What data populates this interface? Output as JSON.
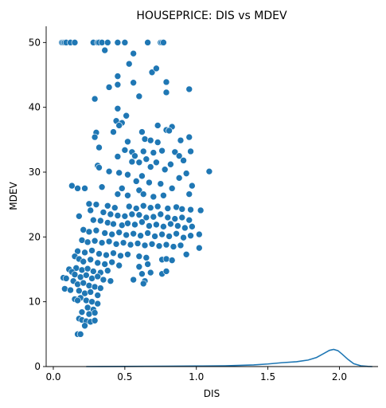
{
  "chart_data": {
    "type": "scatter",
    "title": "HOUSEPRICE: DIS vs MDEV",
    "xlabel": "DIS",
    "ylabel": "MDEV",
    "xlim": [
      -0.05,
      2.27
    ],
    "ylim": [
      0,
      52.5
    ],
    "x_ticks": [
      0.0,
      0.5,
      1.0,
      1.5,
      2.0
    ],
    "x_tick_labels": [
      "0.0",
      "0.5",
      "1.0",
      "1.5",
      "2.0"
    ],
    "y_ticks": [
      0,
      10,
      20,
      30,
      40,
      50
    ],
    "y_tick_labels": [
      "0",
      "10",
      "20",
      "30",
      "40",
      "50"
    ],
    "grid": false,
    "legend": "none",
    "marker_color": "#1f77b4",
    "series": [
      {
        "kind": "scatter",
        "points": [
          [
            0.06,
            50
          ],
          [
            0.07,
            50
          ],
          [
            0.08,
            50
          ],
          [
            0.09,
            50
          ],
          [
            0.12,
            50
          ],
          [
            0.15,
            50
          ],
          [
            0.28,
            50
          ],
          [
            0.31,
            50
          ],
          [
            0.32,
            50
          ],
          [
            0.34,
            50
          ],
          [
            0.38,
            50
          ],
          [
            0.45,
            50
          ],
          [
            0.5,
            50
          ],
          [
            0.66,
            50
          ],
          [
            0.75,
            50
          ],
          [
            0.76,
            50
          ],
          [
            0.77,
            50
          ],
          [
            0.36,
            48.8
          ],
          [
            0.56,
            48.3
          ],
          [
            0.53,
            46.7
          ],
          [
            0.69,
            45.4
          ],
          [
            0.72,
            46
          ],
          [
            0.45,
            44.8
          ],
          [
            0.45,
            43.5
          ],
          [
            0.56,
            43.8
          ],
          [
            0.39,
            43.1
          ],
          [
            0.79,
            43.9
          ],
          [
            0.95,
            42.8
          ],
          [
            0.79,
            42.3
          ],
          [
            0.6,
            41.7
          ],
          [
            0.29,
            41.3
          ],
          [
            0.45,
            39.8
          ],
          [
            0.51,
            38.7
          ],
          [
            0.44,
            37.9
          ],
          [
            0.48,
            37.6
          ],
          [
            0.46,
            37.2
          ],
          [
            0.73,
            37.2
          ],
          [
            0.83,
            37
          ],
          [
            0.42,
            36.2
          ],
          [
            0.62,
            36.2
          ],
          [
            0.79,
            36.5
          ],
          [
            0.81,
            36.4
          ],
          [
            0.3,
            36.1
          ],
          [
            0.29,
            35.4
          ],
          [
            0.64,
            35.1
          ],
          [
            0.68,
            34.9
          ],
          [
            0.73,
            34.6
          ],
          [
            0.89,
            34.9
          ],
          [
            0.95,
            35.4
          ],
          [
            0.52,
            34.7
          ],
          [
            0.32,
            33.8
          ],
          [
            0.5,
            33.4
          ],
          [
            0.55,
            33.1
          ],
          [
            0.63,
            33.2
          ],
          [
            0.7,
            33
          ],
          [
            0.76,
            33.3
          ],
          [
            0.85,
            33.1
          ],
          [
            0.96,
            33.2
          ],
          [
            0.57,
            32.5
          ],
          [
            0.45,
            32.4
          ],
          [
            0.88,
            32.5
          ],
          [
            0.65,
            32
          ],
          [
            0.55,
            31.6
          ],
          [
            0.6,
            31.5
          ],
          [
            0.72,
            31.5
          ],
          [
            0.82,
            31.2
          ],
          [
            0.91,
            31.8
          ],
          [
            0.31,
            31
          ],
          [
            0.32,
            30.7
          ],
          [
            0.68,
            30.8
          ],
          [
            0.78,
            30.4
          ],
          [
            0.39,
            30.1
          ],
          [
            0.46,
            29.9
          ],
          [
            0.52,
            29.6
          ],
          [
            0.62,
            29.4
          ],
          [
            0.88,
            29.1
          ],
          [
            0.93,
            29.8
          ],
          [
            1.09,
            30.1
          ],
          [
            0.58,
            28.6
          ],
          [
            0.67,
            28.4
          ],
          [
            0.75,
            28.2
          ],
          [
            0.13,
            27.9
          ],
          [
            0.17,
            27.5
          ],
          [
            0.22,
            27.5
          ],
          [
            0.34,
            27.7
          ],
          [
            0.48,
            27.5
          ],
          [
            0.6,
            27.2
          ],
          [
            0.83,
            27.5
          ],
          [
            0.97,
            27.9
          ],
          [
            0.45,
            26.6
          ],
          [
            0.52,
            26.4
          ],
          [
            0.63,
            26.6
          ],
          [
            0.7,
            26.2
          ],
          [
            0.77,
            26.4
          ],
          [
            0.95,
            26.6
          ],
          [
            0.25,
            25.1
          ],
          [
            0.3,
            25
          ],
          [
            0.38,
            24.8
          ],
          [
            0.43,
            24.5
          ],
          [
            0.53,
            24.7
          ],
          [
            0.58,
            24.4
          ],
          [
            0.63,
            24.8
          ],
          [
            0.68,
            24.5
          ],
          [
            0.73,
            24.7
          ],
          [
            0.8,
            24.4
          ],
          [
            0.86,
            24.6
          ],
          [
            0.9,
            24.3
          ],
          [
            0.96,
            24.2
          ],
          [
            1.03,
            24.1
          ],
          [
            0.26,
            24.1
          ],
          [
            0.35,
            23.8
          ],
          [
            0.4,
            23.5
          ],
          [
            0.45,
            23.3
          ],
          [
            0.5,
            23.2
          ],
          [
            0.55,
            23.5
          ],
          [
            0.6,
            23.4
          ],
          [
            0.65,
            23
          ],
          [
            0.7,
            23.1
          ],
          [
            0.75,
            23.5
          ],
          [
            0.8,
            23
          ],
          [
            0.85,
            22.8
          ],
          [
            0.9,
            23
          ],
          [
            0.95,
            22.6
          ],
          [
            0.18,
            23.2
          ],
          [
            0.28,
            22.6
          ],
          [
            0.33,
            22.5
          ],
          [
            0.38,
            22.2
          ],
          [
            0.42,
            22
          ],
          [
            0.48,
            21.8
          ],
          [
            0.52,
            22.1
          ],
          [
            0.57,
            21.9
          ],
          [
            0.62,
            22.3
          ],
          [
            0.67,
            21.7
          ],
          [
            0.72,
            21.9
          ],
          [
            0.77,
            21.6
          ],
          [
            0.82,
            22
          ],
          [
            0.87,
            21.7
          ],
          [
            0.92,
            21.4
          ],
          [
            0.97,
            21.6
          ],
          [
            0.21,
            21.1
          ],
          [
            0.25,
            20.8
          ],
          [
            0.3,
            21
          ],
          [
            0.36,
            20.6
          ],
          [
            0.41,
            20.4
          ],
          [
            0.46,
            20.7
          ],
          [
            0.51,
            20.3
          ],
          [
            0.56,
            20.5
          ],
          [
            0.61,
            20.2
          ],
          [
            0.66,
            20.6
          ],
          [
            0.71,
            20.1
          ],
          [
            0.76,
            20.4
          ],
          [
            0.81,
            20.1
          ],
          [
            0.86,
            20.5
          ],
          [
            0.91,
            19.9
          ],
          [
            0.96,
            20.2
          ],
          [
            1.02,
            20.4
          ],
          [
            0.2,
            19.5
          ],
          [
            0.24,
            19.2
          ],
          [
            0.29,
            19.4
          ],
          [
            0.34,
            19.1
          ],
          [
            0.39,
            19.3
          ],
          [
            0.44,
            18.9
          ],
          [
            0.49,
            19.1
          ],
          [
            0.54,
            18.8
          ],
          [
            0.59,
            19
          ],
          [
            0.64,
            18.7
          ],
          [
            0.69,
            18.9
          ],
          [
            0.74,
            18.6
          ],
          [
            0.79,
            18.8
          ],
          [
            0.84,
            18.5
          ],
          [
            0.89,
            18.7
          ],
          [
            1.02,
            18.3
          ],
          [
            0.17,
            17.8
          ],
          [
            0.22,
            17.6
          ],
          [
            0.27,
            17.9
          ],
          [
            0.32,
            17.4
          ],
          [
            0.37,
            17.2
          ],
          [
            0.42,
            17.5
          ],
          [
            0.47,
            17.1
          ],
          [
            0.52,
            17.3
          ],
          [
            0.6,
            17
          ],
          [
            0.65,
            16.8
          ],
          [
            0.76,
            16.5
          ],
          [
            0.79,
            16.6
          ],
          [
            0.83,
            16.4
          ],
          [
            0.93,
            17.3
          ],
          [
            0.15,
            17
          ],
          [
            0.18,
            16.6
          ],
          [
            0.21,
            16.2
          ],
          [
            0.26,
            16.5
          ],
          [
            0.31,
            16
          ],
          [
            0.36,
            15.8
          ],
          [
            0.41,
            16.1
          ],
          [
            0.46,
            15.6
          ],
          [
            0.6,
            15.4
          ],
          [
            0.66,
            15.8
          ],
          [
            0.16,
            15.2
          ],
          [
            0.2,
            14.9
          ],
          [
            0.24,
            15.1
          ],
          [
            0.28,
            14.7
          ],
          [
            0.33,
            14.5
          ],
          [
            0.38,
            14.8
          ],
          [
            0.62,
            14.3
          ],
          [
            0.68,
            14.5
          ],
          [
            0.76,
            14.3
          ],
          [
            0.79,
            14.7
          ],
          [
            0.11,
            15
          ],
          [
            0.13,
            14.6
          ],
          [
            0.15,
            14.2
          ],
          [
            0.19,
            13.8
          ],
          [
            0.23,
            14.1
          ],
          [
            0.27,
            13.6
          ],
          [
            0.31,
            13.9
          ],
          [
            0.35,
            13.4
          ],
          [
            0.4,
            13.2
          ],
          [
            0.64,
            13.2
          ],
          [
            0.07,
            13.7
          ],
          [
            0.09,
            13.6
          ],
          [
            0.14,
            13.2
          ],
          [
            0.17,
            12.7
          ],
          [
            0.21,
            12.9
          ],
          [
            0.25,
            12.5
          ],
          [
            0.29,
            12.3
          ],
          [
            0.33,
            12.1
          ],
          [
            0.56,
            13.4
          ],
          [
            0.63,
            12.8
          ],
          [
            0.08,
            12
          ],
          [
            0.12,
            11.8
          ],
          [
            0.18,
            11.7
          ],
          [
            0.22,
            11.3
          ],
          [
            0.26,
            11.5
          ],
          [
            0.31,
            11
          ],
          [
            0.15,
            10.4
          ],
          [
            0.19,
            10.6
          ],
          [
            0.23,
            10.2
          ],
          [
            0.27,
            10
          ],
          [
            0.31,
            9.7
          ],
          [
            0.17,
            10.2
          ],
          [
            0.24,
            9.1
          ],
          [
            0.28,
            8.8
          ],
          [
            0.2,
            8.4
          ],
          [
            0.25,
            8.1
          ],
          [
            0.29,
            8.3
          ],
          [
            0.18,
            7.4
          ],
          [
            0.2,
            7.2
          ],
          [
            0.23,
            7
          ],
          [
            0.26,
            6.9
          ],
          [
            0.29,
            7.1
          ],
          [
            0.22,
            6.3
          ],
          [
            0.17,
            5
          ],
          [
            0.19,
            5
          ]
        ]
      },
      {
        "kind": "density",
        "points": [
          [
            0.23,
            0
          ],
          [
            0.5,
            0.02
          ],
          [
            0.8,
            0.05
          ],
          [
            1.0,
            0.08
          ],
          [
            1.2,
            0.12
          ],
          [
            1.4,
            0.25
          ],
          [
            1.5,
            0.4
          ],
          [
            1.6,
            0.6
          ],
          [
            1.7,
            0.75
          ],
          [
            1.78,
            1.0
          ],
          [
            1.84,
            1.4
          ],
          [
            1.89,
            2.0
          ],
          [
            1.93,
            2.5
          ],
          [
            1.96,
            2.65
          ],
          [
            1.99,
            2.45
          ],
          [
            2.02,
            1.9
          ],
          [
            2.06,
            1.1
          ],
          [
            2.1,
            0.45
          ],
          [
            2.15,
            0.12
          ],
          [
            2.2,
            0.02
          ],
          [
            2.23,
            0
          ]
        ]
      }
    ]
  }
}
